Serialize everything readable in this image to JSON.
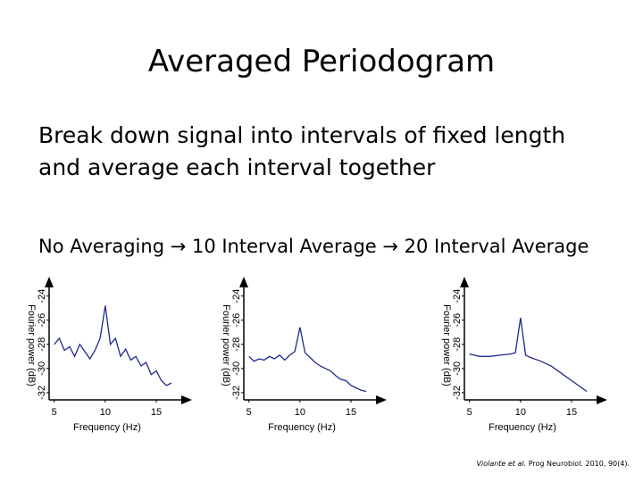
{
  "title": "Averaged Periodogram",
  "bullets": [
    "Break down signal into intervals of fixed length",
    "and average each interval together",
    "No Averaging → 10 Interval Average → 20 Interval Average"
  ],
  "citation": {
    "authors": "Violante et al.",
    "rest": " Prog Neurobiol. 2010, 90(4)."
  },
  "chart_data": [
    {
      "type": "line",
      "xlabel": "Frequency (Hz)",
      "ylabel": "Fourier power (dB)",
      "color": "#1f2a8a",
      "x": [
        5,
        5.5,
        6,
        6.5,
        7,
        7.5,
        8,
        8.5,
        9,
        9.5,
        10,
        10.5,
        11,
        11.5,
        12,
        12.5,
        13,
        13.5,
        14,
        14.5,
        15,
        15.5,
        16,
        16.5
      ],
      "values": [
        -28.0,
        -27.5,
        -28.5,
        -28.2,
        -29.0,
        -28.0,
        -28.6,
        -29.2,
        -28.5,
        -27.5,
        -24.8,
        -28.0,
        -27.5,
        -29.0,
        -28.4,
        -29.3,
        -29.0,
        -29.8,
        -29.5,
        -30.5,
        -30.2,
        -31.0,
        -31.4,
        -31.2
      ],
      "xlim": [
        4.5,
        18.5
      ],
      "ylim": [
        -32.6,
        -22.4
      ],
      "xticks": [
        5,
        10,
        15
      ],
      "yticks": [
        -24,
        -26,
        -28,
        -30,
        -32
      ]
    },
    {
      "type": "line",
      "xlabel": "Frequency (Hz)",
      "ylabel": "Fourier power (dB)",
      "color": "#1f2a8a",
      "x": [
        5,
        5.5,
        6,
        6.5,
        7,
        7.5,
        8,
        8.5,
        9,
        9.5,
        10,
        10.5,
        11,
        11.5,
        12,
        12.5,
        13,
        13.5,
        14,
        14.5,
        15,
        15.5,
        16,
        16.5
      ],
      "values": [
        -29.0,
        -29.4,
        -29.2,
        -29.3,
        -29.0,
        -29.2,
        -28.9,
        -29.3,
        -28.9,
        -28.6,
        -26.6,
        -28.7,
        -29.1,
        -29.5,
        -29.8,
        -30.0,
        -30.2,
        -30.6,
        -30.9,
        -31.0,
        -31.4,
        -31.6,
        -31.8,
        -31.9
      ],
      "xlim": [
        4.5,
        18.5
      ],
      "ylim": [
        -32.6,
        -22.4
      ],
      "xticks": [
        5,
        10,
        15
      ],
      "yticks": [
        -24,
        -26,
        -28,
        -30,
        -32
      ]
    },
    {
      "type": "line",
      "xlabel": "Frequency (Hz)",
      "ylabel": "Fourier power (dB)",
      "color": "#1f2a8a",
      "x": [
        5,
        6,
        7,
        8,
        9,
        9.5,
        10,
        10.5,
        11,
        12,
        13,
        14,
        15,
        16,
        16.5
      ],
      "values": [
        -28.8,
        -29.0,
        -29.0,
        -28.9,
        -28.8,
        -28.7,
        -25.8,
        -28.9,
        -29.1,
        -29.4,
        -29.8,
        -30.4,
        -31.0,
        -31.6,
        -31.9
      ],
      "xlim": [
        4.5,
        18.5
      ],
      "ylim": [
        -32.6,
        -22.4
      ],
      "xticks": [
        5,
        10,
        15
      ],
      "yticks": [
        -24,
        -26,
        -28,
        -30,
        -32
      ]
    }
  ]
}
